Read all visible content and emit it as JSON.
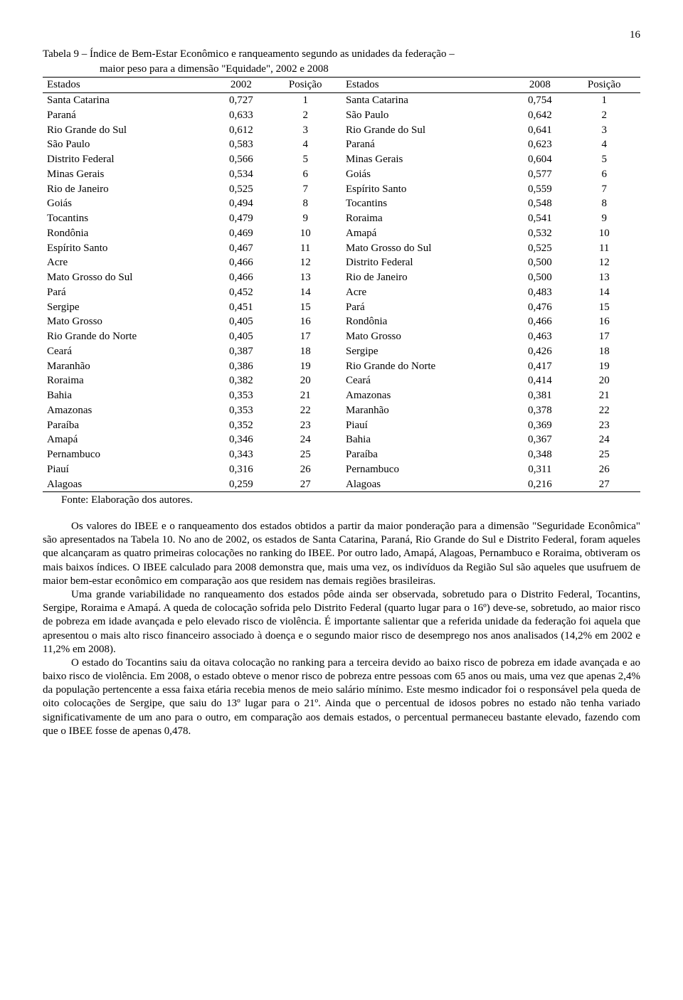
{
  "page_number": "16",
  "caption_line1": "Tabela 9 – Índice de Bem-Estar Econômico e ranqueamento segundo as unidades da federação –",
  "caption_line2": "maior peso para a dimensão \"Equidade\", 2002 e 2008",
  "table": {
    "headers": [
      "Estados",
      "2002",
      "Posição",
      "Estados",
      "2008",
      "Posição"
    ],
    "rows": [
      [
        "Santa Catarina",
        "0,727",
        "1",
        "Santa Catarina",
        "0,754",
        "1"
      ],
      [
        "Paraná",
        "0,633",
        "2",
        "São Paulo",
        "0,642",
        "2"
      ],
      [
        "Rio Grande do Sul",
        "0,612",
        "3",
        "Rio Grande do Sul",
        "0,641",
        "3"
      ],
      [
        "São Paulo",
        "0,583",
        "4",
        "Paraná",
        "0,623",
        "4"
      ],
      [
        "Distrito Federal",
        "0,566",
        "5",
        "Minas Gerais",
        "0,604",
        "5"
      ],
      [
        "Minas Gerais",
        "0,534",
        "6",
        "Goiás",
        "0,577",
        "6"
      ],
      [
        "Rio de Janeiro",
        "0,525",
        "7",
        "Espírito Santo",
        "0,559",
        "7"
      ],
      [
        "Goiás",
        "0,494",
        "8",
        "Tocantins",
        "0,548",
        "8"
      ],
      [
        "Tocantins",
        "0,479",
        "9",
        "Roraima",
        "0,541",
        "9"
      ],
      [
        "Rondônia",
        "0,469",
        "10",
        "Amapá",
        "0,532",
        "10"
      ],
      [
        "Espírito Santo",
        "0,467",
        "11",
        "Mato Grosso do Sul",
        "0,525",
        "11"
      ],
      [
        "Acre",
        "0,466",
        "12",
        "Distrito Federal",
        "0,500",
        "12"
      ],
      [
        "Mato Grosso do Sul",
        "0,466",
        "13",
        "Rio de Janeiro",
        "0,500",
        "13"
      ],
      [
        "Pará",
        "0,452",
        "14",
        "Acre",
        "0,483",
        "14"
      ],
      [
        "Sergipe",
        "0,451",
        "15",
        "Pará",
        "0,476",
        "15"
      ],
      [
        "Mato Grosso",
        "0,405",
        "16",
        "Rondônia",
        "0,466",
        "16"
      ],
      [
        "Rio Grande do Norte",
        "0,405",
        "17",
        "Mato Grosso",
        "0,463",
        "17"
      ],
      [
        "Ceará",
        "0,387",
        "18",
        "Sergipe",
        "0,426",
        "18"
      ],
      [
        "Maranhão",
        "0,386",
        "19",
        "Rio Grande do Norte",
        "0,417",
        "19"
      ],
      [
        "Roraima",
        "0,382",
        "20",
        "Ceará",
        "0,414",
        "20"
      ],
      [
        "Bahia",
        "0,353",
        "21",
        "Amazonas",
        "0,381",
        "21"
      ],
      [
        "Amazonas",
        "0,353",
        "22",
        "Maranhão",
        "0,378",
        "22"
      ],
      [
        "Paraíba",
        "0,352",
        "23",
        "Piauí",
        "0,369",
        "23"
      ],
      [
        "Amapá",
        "0,346",
        "24",
        "Bahia",
        "0,367",
        "24"
      ],
      [
        "Pernambuco",
        "0,343",
        "25",
        "Paraíba",
        "0,348",
        "25"
      ],
      [
        "Piauí",
        "0,316",
        "26",
        "Pernambuco",
        "0,311",
        "26"
      ],
      [
        "Alagoas",
        "0,259",
        "27",
        "Alagoas",
        "0,216",
        "27"
      ]
    ]
  },
  "source": "Fonte: Elaboração dos autores.",
  "para1": "Os valores do IBEE e o ranqueamento dos estados obtidos a partir da maior ponderação para a dimensão \"Seguridade Econômica\" são apresentados na Tabela 10. No ano de 2002, os estados de Santa Catarina, Paraná, Rio Grande do Sul e Distrito Federal, foram aqueles que alcançaram as quatro primeiras colocações no ranking do IBEE. Por outro lado, Amapá, Alagoas, Pernambuco e Roraima, obtiveram os mais baixos índices. O IBEE calculado para 2008 demonstra que, mais uma vez, os indivíduos da Região Sul são aqueles que usufruem de maior bem-estar econômico em comparação aos que residem nas demais regiões brasileiras.",
  "para2": "Uma grande variabilidade no ranqueamento dos estados pôde ainda ser observada, sobretudo para o Distrito Federal, Tocantins, Sergipe, Roraima e Amapá. A queda de colocação sofrida pelo Distrito Federal (quarto lugar para o 16º) deve-se, sobretudo, ao maior risco de pobreza em idade avançada e pelo elevado risco de violência. É importante salientar que a referida unidade da federação foi aquela que apresentou o mais alto risco financeiro associado à doença e o segundo maior risco de desemprego nos anos analisados (14,2% em 2002 e 11,2% em 2008).",
  "para3": "O estado do Tocantins saiu da oitava colocação no ranking para a terceira devido ao baixo risco de pobreza em idade avançada e ao baixo risco de violência. Em 2008, o estado obteve o menor risco de pobreza entre pessoas com 65 anos ou mais, uma vez que apenas 2,4% da população pertencente a essa faixa etária recebia menos de meio salário mínimo. Este mesmo indicador foi o responsável pela queda de oito colocações de Sergipe, que saiu do 13º lugar para o 21º. Ainda que o percentual de idosos pobres no estado não tenha variado significativamente de um ano para o outro, em comparação aos demais estados, o percentual permaneceu bastante elevado, fazendo com que o IBEE fosse de apenas 0,478."
}
